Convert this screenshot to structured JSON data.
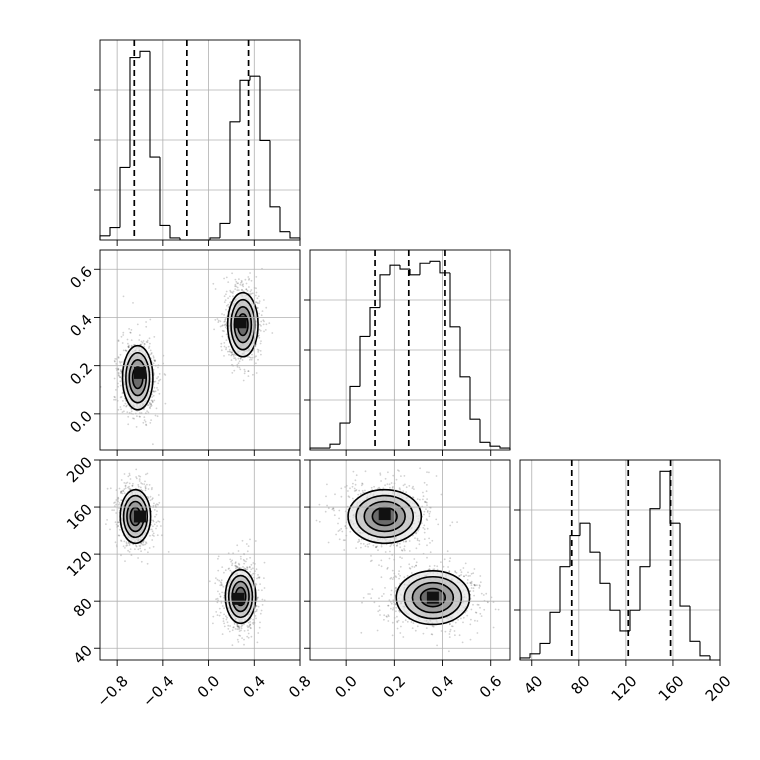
{
  "chart_data": {
    "type": "corner",
    "variables": [
      "param_0",
      "param_1",
      "param_2"
    ],
    "grid": true,
    "axes": {
      "param_0": {
        "range": [
          -0.95,
          0.8
        ],
        "ticks": [
          -0.8,
          -0.4,
          0.0,
          0.4,
          0.8
        ],
        "tick_labels": [
          "−0.8",
          "−0.4",
          "0.0",
          "0.4",
          "0.8"
        ]
      },
      "param_1": {
        "range": [
          -0.15,
          0.68
        ],
        "ticks": [
          0.0,
          0.2,
          0.4,
          0.6
        ],
        "tick_labels": [
          "0.0",
          "0.2",
          "0.4",
          "0.6"
        ]
      },
      "param_2": {
        "range": [
          30,
          200
        ],
        "ticks": [
          40,
          80,
          120,
          160,
          200
        ],
        "tick_labels": [
          "40",
          "80",
          "120",
          "160",
          "200"
        ]
      }
    },
    "histograms": [
      {
        "variable": "param_0",
        "bin_edges": [
          -0.95,
          -0.8625,
          -0.775,
          -0.6875,
          -0.6,
          -0.5125,
          -0.425,
          -0.3375,
          -0.25,
          -0.1625,
          -0.075,
          0.0125,
          0.1,
          0.1875,
          0.275,
          0.3625,
          0.45,
          0.5375,
          0.625,
          0.7125,
          0.8
        ],
        "counts": [
          0.02,
          0.06,
          0.35,
          0.88,
          0.91,
          0.4,
          0.07,
          0.01,
          0.0,
          0.0,
          0.0,
          0.01,
          0.08,
          0.57,
          0.77,
          0.79,
          0.48,
          0.16,
          0.04,
          0.01
        ],
        "quantiles": [
          -0.65,
          -0.19,
          0.35
        ]
      },
      {
        "variable": "param_1",
        "bin_edges": [
          -0.15,
          -0.1085,
          -0.067,
          -0.0255,
          0.016,
          0.0575,
          0.099,
          0.1405,
          0.182,
          0.2235,
          0.265,
          0.3065,
          0.348,
          0.3895,
          0.431,
          0.4725,
          0.514,
          0.5555,
          0.597,
          0.6385,
          0.68
        ],
        "counts": [
          0.01,
          0.01,
          0.03,
          0.14,
          0.33,
          0.59,
          0.74,
          0.91,
          0.96,
          0.94,
          0.91,
          0.97,
          0.98,
          0.92,
          0.64,
          0.38,
          0.16,
          0.04,
          0.02,
          0.01
        ],
        "quantiles": [
          0.12,
          0.26,
          0.41
        ]
      },
      {
        "variable": "param_2",
        "bin_edges": [
          30,
          38.5,
          47,
          55.5,
          64,
          72.5,
          81,
          89.5,
          98,
          106.5,
          115,
          123.5,
          132,
          140.5,
          149,
          157.5,
          166,
          174.5,
          183,
          191.5,
          200
        ],
        "counts": [
          0.01,
          0.03,
          0.08,
          0.23,
          0.45,
          0.6,
          0.66,
          0.52,
          0.37,
          0.24,
          0.14,
          0.24,
          0.45,
          0.73,
          0.91,
          0.66,
          0.26,
          0.09,
          0.02,
          0.0
        ],
        "quantiles": [
          74,
          122,
          158
        ]
      }
    ],
    "joint_panels": [
      {
        "x": "param_0",
        "y": "param_1",
        "clusters": [
          {
            "center": [
              -0.62,
              0.15
            ],
            "spread": [
              0.07,
              0.07
            ],
            "levels": [
              0.085,
              0.11,
              0.145,
              0.185
            ],
            "hotspot": [
              -0.6,
              0.17
            ]
          },
          {
            "center": [
              0.3,
              0.37
            ],
            "spread": [
              0.07,
              0.07
            ],
            "levels": [
              0.085,
              0.105,
              0.135,
              0.17
            ],
            "hotspot": [
              0.28,
              0.38
            ]
          }
        ]
      },
      {
        "x": "param_0",
        "y": "param_2",
        "clusters": [
          {
            "center": [
              -0.64,
              152
            ],
            "spread": [
              0.07,
              12
            ],
            "levels": [
              0.08,
              0.11,
              0.145,
              0.18
            ],
            "hotspot": [
              -0.6,
              152
            ]
          },
          {
            "center": [
              0.28,
              84
            ],
            "spread": [
              0.07,
              12
            ],
            "levels": [
              0.09,
              0.12,
              0.155,
              0.2
            ],
            "hotspot": [
              0.26,
              82
            ]
          }
        ]
      },
      {
        "x": "param_1",
        "y": "param_2",
        "clusters": [
          {
            "center": [
              0.16,
              152
            ],
            "spread": [
              0.08,
              12
            ],
            "levels": [
              0.075,
              0.11,
              0.15,
              0.19
            ],
            "hotspot": [
              0.16,
              154
            ]
          },
          {
            "center": [
              0.36,
              83
            ],
            "spread": [
              0.08,
              12
            ],
            "levels": [
              0.07,
              0.1,
              0.135,
              0.17
            ],
            "hotspot": [
              0.36,
              83
            ]
          }
        ]
      }
    ]
  }
}
